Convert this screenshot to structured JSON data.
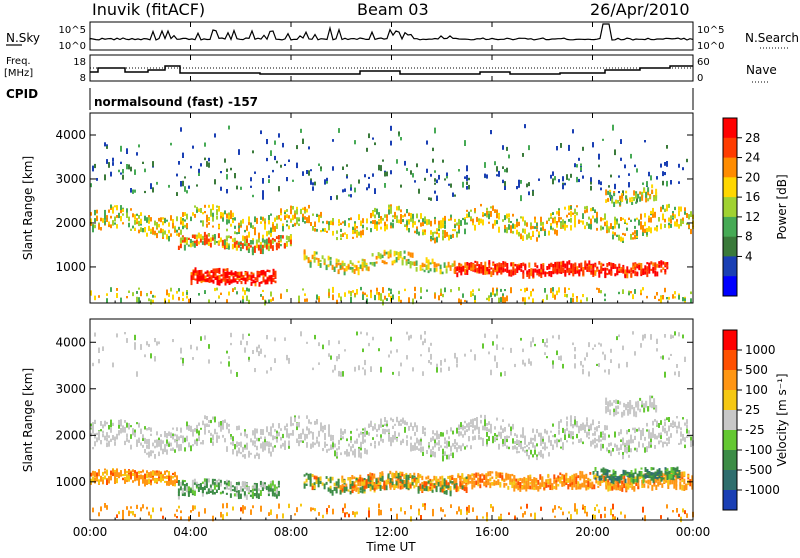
{
  "header": {
    "station": "Inuvik (fitACF)",
    "beam": "Beam 03",
    "date": "26/Apr/2010"
  },
  "aux_panels": {
    "nsky_label": "N.Sky",
    "nsearch_label": "N.Search",
    "noise_ticks_left": [
      "10^5",
      "10^0"
    ],
    "noise_ticks_right": [
      "10^5",
      "10^0"
    ],
    "freq_label_1": "Freq.",
    "freq_label_2": "[MHz]",
    "freq_ticks": [
      "18",
      "8"
    ],
    "nave_label": "Nave",
    "nave_ticks": [
      "60",
      "0"
    ],
    "cpid_label": "CPID",
    "cpid_value": "normalsound (fast) -157"
  },
  "chart_data": [
    {
      "type": "heatmap",
      "name": "power",
      "ylabel": "Slant Range [km]",
      "xlabel": "Time UT",
      "ylim": [
        180,
        4500
      ],
      "xlim_hours": [
        0,
        24
      ],
      "y_ticks": [
        "1000",
        "2000",
        "3000",
        "4000"
      ],
      "colorbar": {
        "label": "Power [dB]",
        "ticks": [
          "28",
          "24",
          "20",
          "16",
          "12",
          "8",
          "4"
        ],
        "colors": [
          "#0000ff",
          "#1a3fb4",
          "#3a7a3a",
          "#46aa55",
          "#a0d232",
          "#ffd700",
          "#ff8c00",
          "#ff3c00",
          "#ff0000"
        ]
      }
    },
    {
      "type": "heatmap",
      "name": "velocity",
      "ylabel": "Slant Range [km]",
      "xlabel": "Time UT",
      "ylim": [
        180,
        4500
      ],
      "xlim_hours": [
        0,
        24
      ],
      "y_ticks": [
        "1000",
        "2000",
        "3000",
        "4000"
      ],
      "colorbar": {
        "label": "Velocity [m s⁻¹]",
        "ticks": [
          "1000",
          "500",
          "100",
          "25",
          "-25",
          "-100",
          "-500",
          "-1000"
        ],
        "colors": [
          "#1a3fb4",
          "#2f6e6e",
          "#3c8c46",
          "#64c832",
          "#c8c8c8",
          "#f5c814",
          "#ff9614",
          "#ff5000",
          "#ff0000"
        ]
      }
    }
  ],
  "x_ticks": [
    "00:00",
    "04:00",
    "08:00",
    "12:00",
    "16:00",
    "20:00",
    "00:00"
  ],
  "xlabel": "Time UT"
}
